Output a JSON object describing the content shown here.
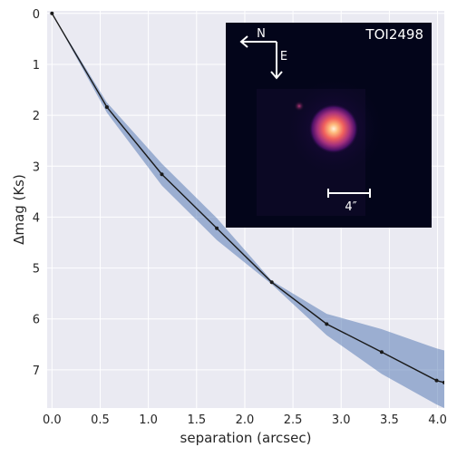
{
  "chart_data": {
    "type": "line",
    "xlabel": "separation (arcsec)",
    "ylabel": "Δmag (Ks)",
    "xlim": [
      -0.05,
      4.07
    ],
    "ylim": [
      7.75,
      -0.05
    ],
    "y_inverted": true,
    "grid": true,
    "x_ticks": [
      "0.0",
      "0.5",
      "1.0",
      "1.5",
      "2.0",
      "2.5",
      "3.0",
      "3.5",
      "4.0"
    ],
    "y_ticks": [
      "0",
      "1",
      "2",
      "3",
      "4",
      "5",
      "6",
      "7"
    ],
    "series": [
      {
        "x": [
          0.0,
          0.57,
          1.14,
          1.71,
          2.28,
          2.85,
          3.42,
          3.99,
          4.07
        ],
        "y": [
          0.0,
          1.84,
          3.16,
          4.22,
          5.28,
          6.1,
          6.65,
          7.21,
          7.25
        ],
        "band_low": [
          0.0,
          1.75,
          2.95,
          4.02,
          5.25,
          5.9,
          6.2,
          6.58,
          6.62
        ],
        "band_high": [
          0.0,
          1.95,
          3.38,
          4.45,
          5.32,
          6.32,
          7.08,
          7.68,
          7.75
        ],
        "color": "#1a1a1a",
        "band_color": "#4c72b0"
      }
    ],
    "inset": {
      "title": "TOI2498",
      "north_label": "N",
      "east_label": "E",
      "scale_label": "4″",
      "background": "#03051a"
    }
  },
  "colors": {
    "axes_bg": "#eaeaf2",
    "grid": "#ffffff",
    "text": "#262626"
  }
}
